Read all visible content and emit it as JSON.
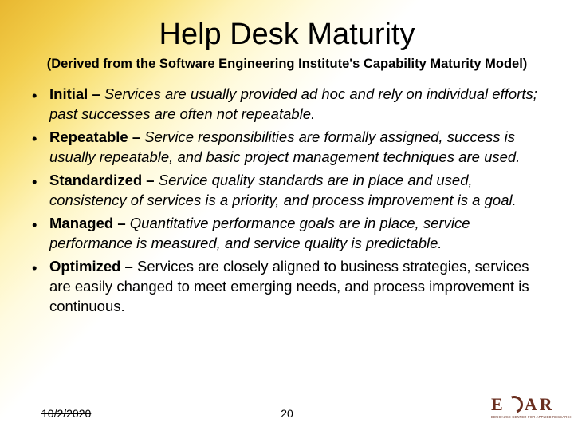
{
  "background": {
    "gradient_angle_deg": 135,
    "stops": [
      {
        "color": "#e8b730",
        "at": 0
      },
      {
        "color": "#f2cd4a",
        "at": 8
      },
      {
        "color": "#f9e27a",
        "at": 16
      },
      {
        "color": "#fef3b8",
        "at": 24
      },
      {
        "color": "#fffbe0",
        "at": 32
      },
      {
        "color": "#ffffff",
        "at": 42
      },
      {
        "color": "#ffffff",
        "at": 100
      }
    ]
  },
  "title": "Help Desk Maturity",
  "subtitle": "(Derived from the Software Engineering Institute's Capability Maturity Model)",
  "title_fontsize": 38,
  "subtitle_fontsize": 16.5,
  "body_fontsize": 18.5,
  "text_color": "#000000",
  "bullet_glyph": "•",
  "items": [
    {
      "label": "Initial",
      "dash": " – ",
      "desc": "Services are usually provided ad hoc and rely on individual efforts; past successes are often not repeatable.",
      "style": "italic"
    },
    {
      "label": "Repeatable",
      "dash": " – ",
      "desc": "Service responsibilities are formally assigned, success is usually repeatable, and basic project management techniques are used.",
      "style": "italic"
    },
    {
      "label": "Standardized",
      "dash": " – ",
      "desc": "Service quality standards are in place and used, consistency of services is a priority, and process improvement is a goal.",
      "style": "italic"
    },
    {
      "label": "Managed",
      "dash": " – ",
      "desc": "Quantitative performance goals are in place, service performance is measured, and service quality is predictable.",
      "style": "italic"
    },
    {
      "label": "Optimized",
      "dash": " – ",
      "desc": "Services are closely aligned to business strategies, services are easily changed to meet emerging needs, and process improvement is continuous.",
      "style": "normal"
    }
  ],
  "footer": {
    "date": "10/2/2020",
    "page_number": "20",
    "date_struck": true
  },
  "logo": {
    "text": "ECAR",
    "subtext": "EDUCAUSE CENTER FOR APPLIED RESEARCH",
    "color": "#6a2e1f"
  }
}
